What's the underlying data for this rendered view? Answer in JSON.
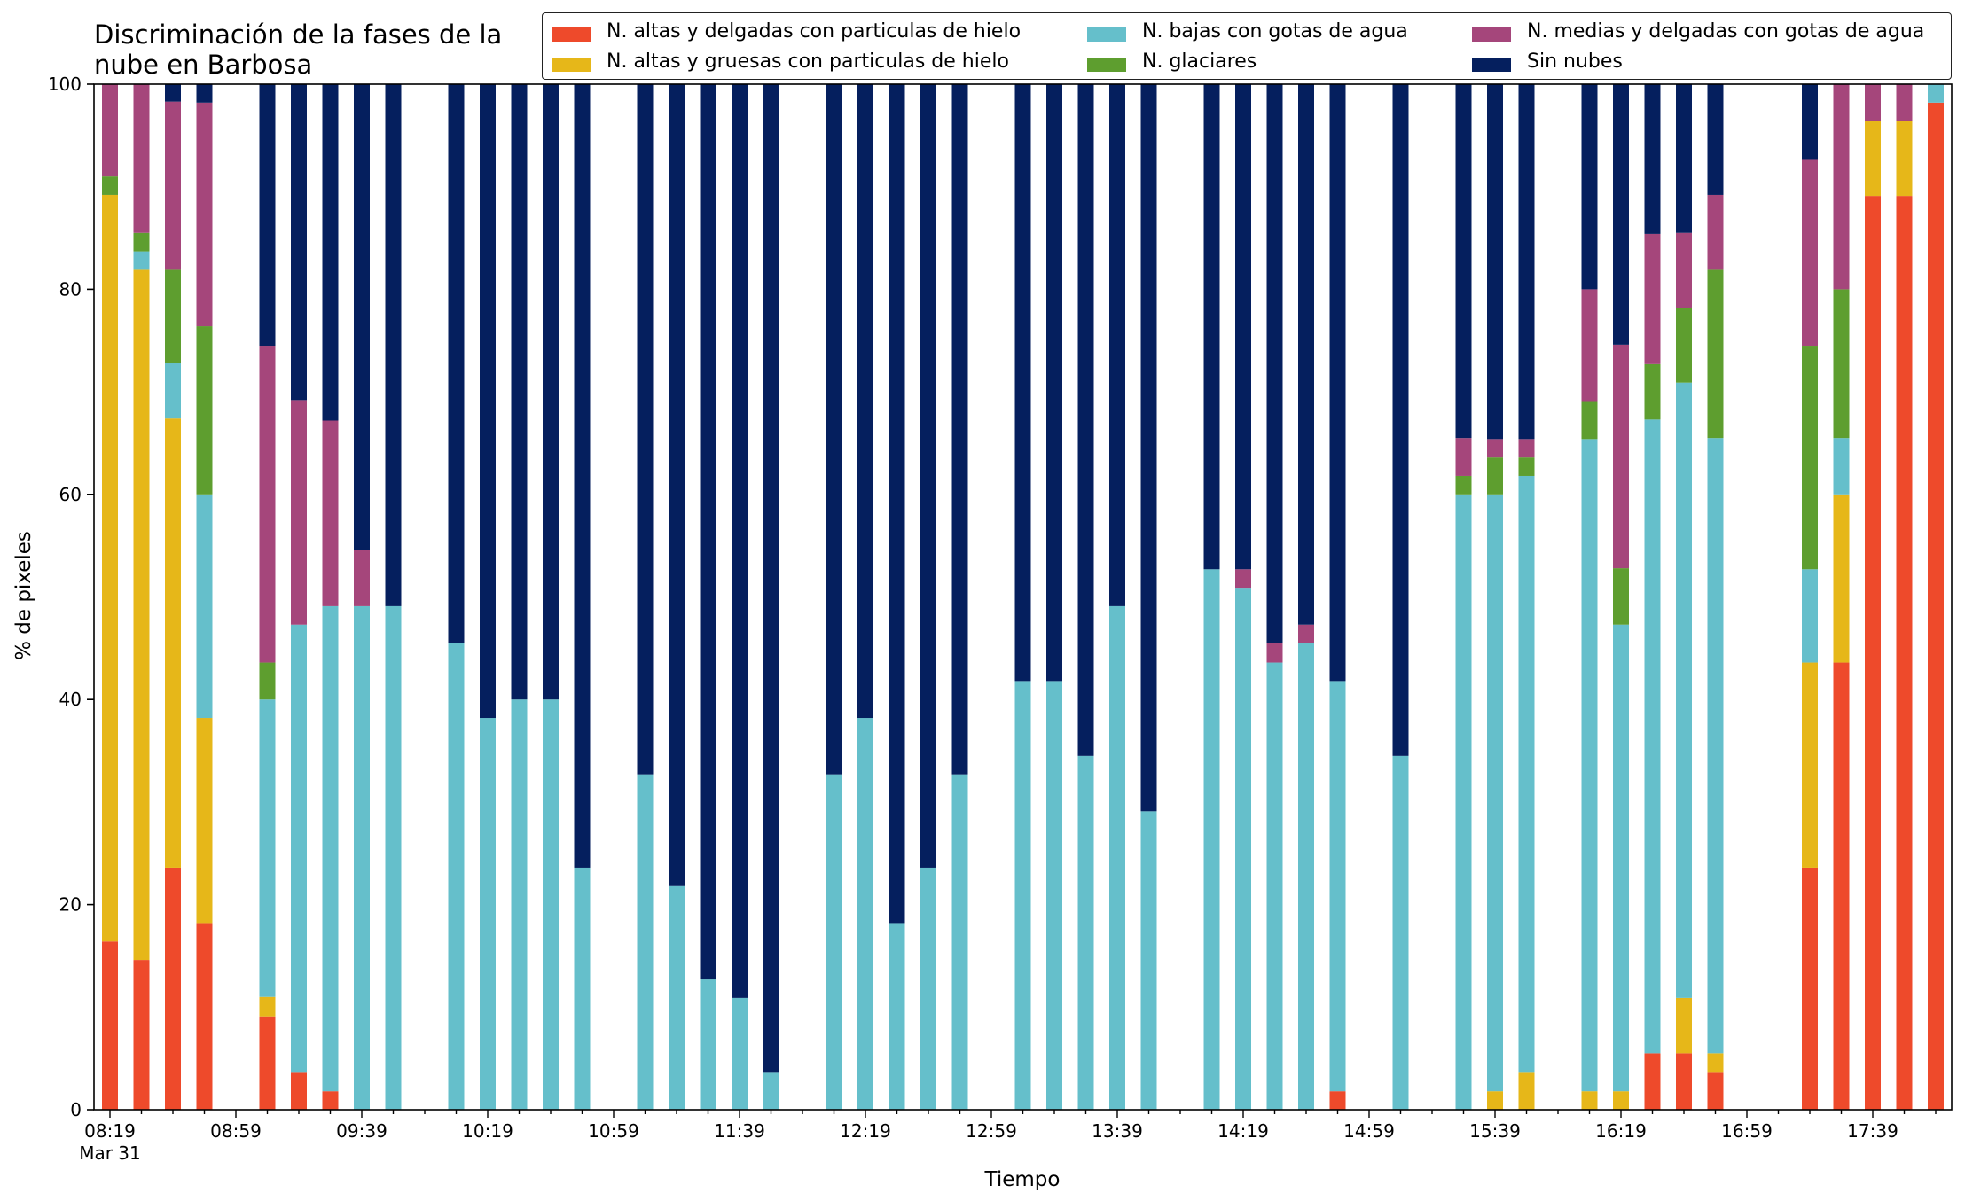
{
  "chart_data": {
    "type": "bar",
    "stacked": true,
    "title": [
      "Discriminación de la fases de la",
      "nube en Barbosa"
    ],
    "xlabel": "Tiempo",
    "ylabel": "% de pixeles",
    "ylim": [
      0,
      100
    ],
    "yticks": [
      0,
      20,
      40,
      60,
      80,
      100
    ],
    "xticks": [
      {
        "label": "08:19",
        "label2": "Mar 31",
        "slot": 0
      },
      {
        "label": "08:59",
        "slot": 4
      },
      {
        "label": "09:39",
        "slot": 8
      },
      {
        "label": "10:19",
        "slot": 12
      },
      {
        "label": "10:59",
        "slot": 16
      },
      {
        "label": "11:39",
        "slot": 20
      },
      {
        "label": "12:19",
        "slot": 24
      },
      {
        "label": "12:59",
        "slot": 28
      },
      {
        "label": "13:39",
        "slot": 32
      },
      {
        "label": "14:19",
        "slot": 36
      },
      {
        "label": "14:59",
        "slot": 40
      },
      {
        "label": "15:39",
        "slot": 44
      },
      {
        "label": "16:19",
        "slot": 48
      },
      {
        "label": "16:59",
        "slot": 52
      },
      {
        "label": "17:39",
        "slot": 56
      }
    ],
    "slot_minutes": 10,
    "start_time": "08:19",
    "legend_position": "top-right",
    "series": [
      {
        "name": "N. altas y delgadas con particulas de hielo",
        "color": "#ee4a2b"
      },
      {
        "name": "N. altas y gruesas con particulas de hielo",
        "color": "#e6b719"
      },
      {
        "name": "N. bajas con gotas de agua",
        "color": "#65bfcb"
      },
      {
        "name": "N. glaciares",
        "color": "#5e9e2f"
      },
      {
        "name": "N. medias y delgadas con gotas de agua",
        "color": "#a5467b"
      },
      {
        "name": "Sin nubes",
        "color": "#051f5e"
      }
    ],
    "bars": [
      {
        "slot": 0,
        "values": [
          16.4,
          72.8,
          0,
          1.8,
          9.0,
          0
        ]
      },
      {
        "slot": 1,
        "values": [
          14.6,
          67.3,
          1.8,
          1.8,
          14.5,
          0
        ]
      },
      {
        "slot": 2,
        "values": [
          23.6,
          43.8,
          5.4,
          9.1,
          16.4,
          1.7
        ]
      },
      {
        "slot": 3,
        "values": [
          18.2,
          20.0,
          21.8,
          16.4,
          21.8,
          1.8
        ]
      },
      {
        "slot": 5,
        "values": [
          9.1,
          1.9,
          29.0,
          3.6,
          30.9,
          25.5
        ]
      },
      {
        "slot": 6,
        "values": [
          3.6,
          0,
          43.7,
          0,
          21.9,
          30.8
        ]
      },
      {
        "slot": 7,
        "values": [
          1.8,
          0,
          47.3,
          0,
          18.1,
          32.8
        ]
      },
      {
        "slot": 8,
        "values": [
          0,
          0,
          49.1,
          0,
          5.5,
          45.4
        ]
      },
      {
        "slot": 9,
        "values": [
          0,
          0,
          49.1,
          0,
          0,
          50.9
        ]
      },
      {
        "slot": 11,
        "values": [
          0,
          0,
          45.5,
          0,
          0,
          54.5
        ]
      },
      {
        "slot": 12,
        "values": [
          0,
          0,
          38.2,
          0,
          0,
          61.8
        ]
      },
      {
        "slot": 13,
        "values": [
          0,
          0,
          40.0,
          0,
          0,
          60.0
        ]
      },
      {
        "slot": 14,
        "values": [
          0,
          0,
          40.0,
          0,
          0,
          60.0
        ]
      },
      {
        "slot": 15,
        "values": [
          0,
          0,
          23.6,
          0,
          0,
          76.4
        ]
      },
      {
        "slot": 17,
        "values": [
          0,
          0,
          32.7,
          0,
          0,
          67.3
        ]
      },
      {
        "slot": 18,
        "values": [
          0,
          0,
          21.8,
          0,
          0,
          78.2
        ]
      },
      {
        "slot": 19,
        "values": [
          0,
          0,
          12.7,
          0,
          0,
          87.3
        ]
      },
      {
        "slot": 20,
        "values": [
          0,
          0,
          10.9,
          0,
          0,
          89.1
        ]
      },
      {
        "slot": 21,
        "values": [
          0,
          0,
          3.6,
          0,
          0,
          96.4
        ]
      },
      {
        "slot": 23,
        "values": [
          0,
          0,
          32.7,
          0,
          0,
          67.3
        ]
      },
      {
        "slot": 24,
        "values": [
          0,
          0,
          38.2,
          0,
          0,
          61.8
        ]
      },
      {
        "slot": 25,
        "values": [
          0,
          0,
          18.2,
          0,
          0,
          81.8
        ]
      },
      {
        "slot": 26,
        "values": [
          0,
          0,
          23.6,
          0,
          0,
          76.4
        ]
      },
      {
        "slot": 27,
        "values": [
          0,
          0,
          32.7,
          0,
          0,
          67.3
        ]
      },
      {
        "slot": 29,
        "values": [
          0,
          0,
          41.8,
          0,
          0,
          58.2
        ]
      },
      {
        "slot": 30,
        "values": [
          0,
          0,
          41.8,
          0,
          0,
          58.2
        ]
      },
      {
        "slot": 31,
        "values": [
          0,
          0,
          34.5,
          0,
          0,
          65.5
        ]
      },
      {
        "slot": 32,
        "values": [
          0,
          0,
          49.1,
          0,
          0,
          50.9
        ]
      },
      {
        "slot": 33,
        "values": [
          0,
          0,
          29.1,
          0,
          0,
          70.9
        ]
      },
      {
        "slot": 35,
        "values": [
          0,
          0,
          52.7,
          0,
          0,
          47.3
        ]
      },
      {
        "slot": 36,
        "values": [
          0,
          0,
          50.9,
          0,
          1.8,
          47.3
        ]
      },
      {
        "slot": 37,
        "values": [
          0,
          0,
          43.6,
          0,
          1.9,
          54.5
        ]
      },
      {
        "slot": 38,
        "values": [
          0,
          0,
          45.5,
          0,
          1.8,
          52.7
        ]
      },
      {
        "slot": 39,
        "values": [
          1.8,
          0,
          40.0,
          0,
          0,
          58.2
        ]
      },
      {
        "slot": 41,
        "values": [
          0,
          0,
          34.5,
          0,
          0,
          65.5
        ]
      },
      {
        "slot": 43,
        "values": [
          0,
          0,
          60.0,
          1.8,
          3.7,
          34.5
        ]
      },
      {
        "slot": 44,
        "values": [
          0,
          1.8,
          58.2,
          3.6,
          1.8,
          34.6
        ]
      },
      {
        "slot": 45,
        "values": [
          0,
          3.6,
          58.2,
          1.8,
          1.8,
          34.6
        ]
      },
      {
        "slot": 47,
        "values": [
          0,
          1.8,
          63.6,
          3.7,
          10.9,
          20.0
        ]
      },
      {
        "slot": 48,
        "values": [
          0,
          1.8,
          45.5,
          5.5,
          21.8,
          25.4
        ]
      },
      {
        "slot": 49,
        "values": [
          5.5,
          0,
          61.8,
          5.4,
          12.7,
          14.6
        ]
      },
      {
        "slot": 50,
        "values": [
          5.5,
          5.4,
          60.0,
          7.3,
          7.3,
          14.5
        ]
      },
      {
        "slot": 51,
        "values": [
          3.6,
          1.9,
          60.0,
          16.4,
          7.3,
          10.8
        ]
      },
      {
        "slot": 53,
        "values": [
          0,
          0,
          0,
          0,
          0,
          0
        ]
      },
      {
        "slot": 54,
        "values": [
          23.6,
          20.0,
          9.1,
          21.8,
          18.2,
          7.3
        ]
      },
      {
        "slot": 55,
        "values": [
          43.6,
          16.4,
          5.5,
          14.5,
          20.0,
          0
        ]
      },
      {
        "slot": 56,
        "values": [
          89.1,
          7.3,
          0,
          0,
          3.6,
          0
        ]
      },
      {
        "slot": 57,
        "values": [
          89.1,
          7.3,
          0,
          0,
          3.6,
          0
        ]
      },
      {
        "slot": 58,
        "values": [
          98.2,
          0,
          1.8,
          0,
          0,
          0
        ]
      }
    ]
  }
}
